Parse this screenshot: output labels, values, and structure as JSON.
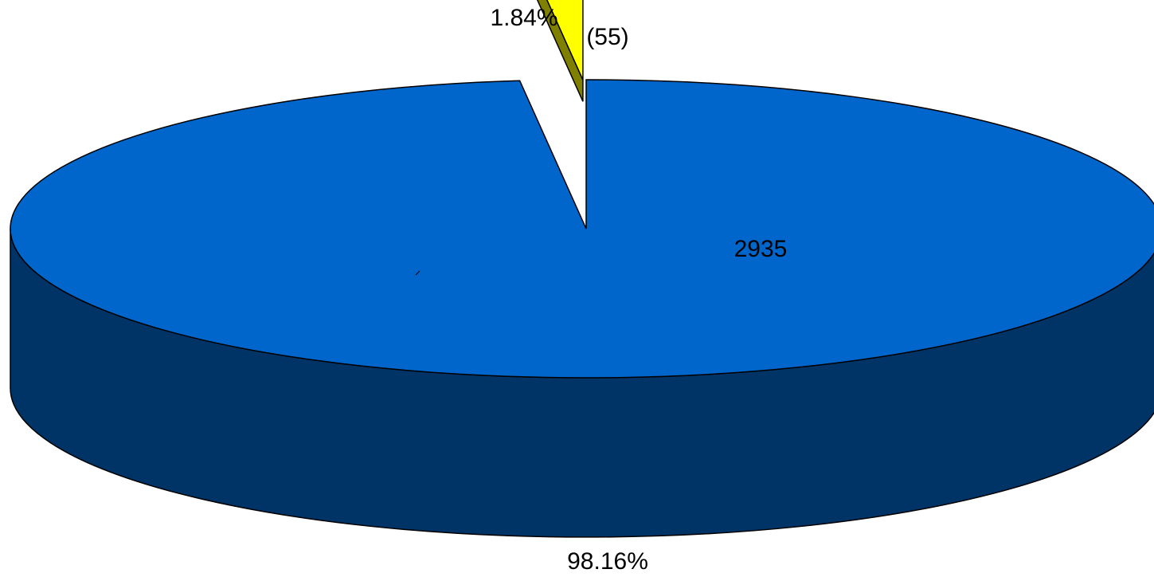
{
  "chart_data": {
    "type": "pie",
    "variant": "3d-exploded",
    "slices": [
      {
        "value": 2935,
        "percent": 98.16,
        "value_label": "2935",
        "percent_label": "98.16%",
        "color": "#0066CC",
        "side_color": "#003366",
        "exploded": false
      },
      {
        "value": 55,
        "percent": 1.84,
        "value_label": "(55)",
        "percent_label": "1.84%",
        "color": "#FFFF00",
        "side_color": "#808000",
        "exploded": true
      }
    ]
  }
}
